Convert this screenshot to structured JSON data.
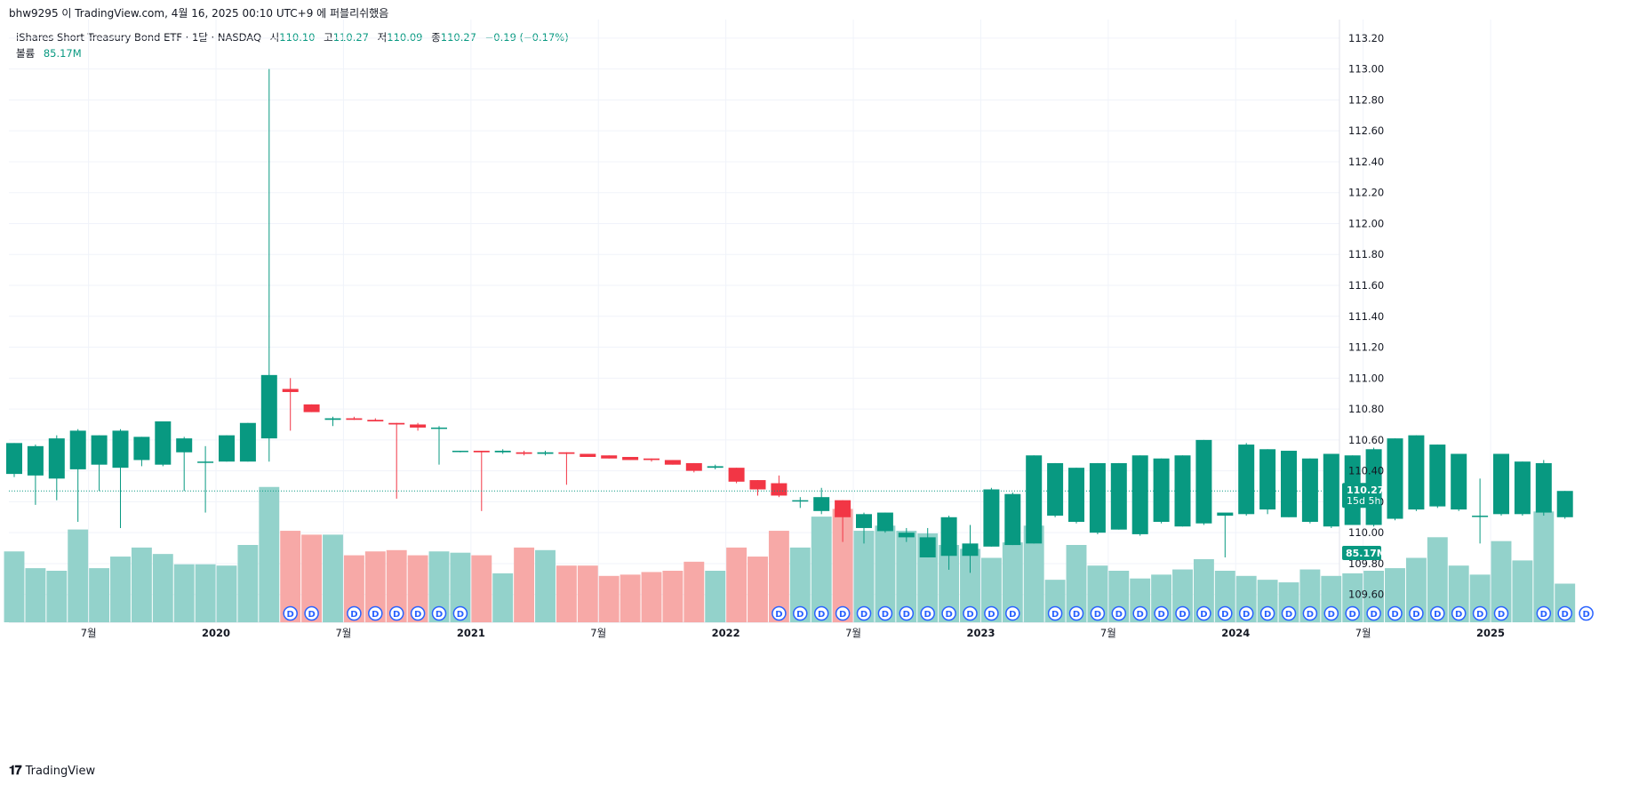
{
  "attribution": "bhw9295 이 TradingView.com, 4월 16, 2025 00:10 UTC+9 에 퍼블리쉬했음",
  "legend": {
    "symbol": "iShares Short Treasury Bond ETF · 1달 · NASDAQ",
    "open_label": "시",
    "open": "110.10",
    "high_label": "고",
    "high": "110.27",
    "low_label": "저",
    "low": "110.09",
    "close_label": "종",
    "close": "110.27",
    "change": "−0.19 (−0.17%)",
    "volume_label": "볼륨",
    "volume": "85.17M"
  },
  "price_tag": {
    "price": "110.27",
    "countdown": "15d 5h"
  },
  "volume_tag": "85.17M",
  "footer_logo": "TradingView",
  "colors": {
    "up": "#089981",
    "down": "#f23645",
    "vol_up": "#93d2cb",
    "vol_down": "#f7a9a7",
    "grid": "#f0f3fa",
    "badge": "#2962ff"
  },
  "icons": {
    "dividend": "dividend-badge-icon",
    "logo": "tradingview-logo-icon"
  },
  "chart_data": {
    "type": "candlestick",
    "interval": "1M",
    "ylim": [
      109.42,
      113.32
    ],
    "yticks": [
      "113.20",
      "113.00",
      "112.80",
      "112.60",
      "112.40",
      "112.20",
      "112.00",
      "111.80",
      "111.60",
      "111.40",
      "111.20",
      "111.00",
      "110.80",
      "110.60",
      "110.40",
      "110.20",
      "110.00",
      "109.80",
      "109.60"
    ],
    "xticks": [
      {
        "label": "7월",
        "year": false,
        "index": 4
      },
      {
        "label": "2020",
        "year": true,
        "index": 10
      },
      {
        "label": "7월",
        "year": false,
        "index": 16
      },
      {
        "label": "2021",
        "year": true,
        "index": 22
      },
      {
        "label": "7월",
        "year": false,
        "index": 28
      },
      {
        "label": "2022",
        "year": true,
        "index": 34
      },
      {
        "label": "7월",
        "year": false,
        "index": 40
      },
      {
        "label": "2023",
        "year": true,
        "index": 46
      },
      {
        "label": "7월",
        "year": false,
        "index": 52
      },
      {
        "label": "2024",
        "year": true,
        "index": 58
      },
      {
        "label": "7월",
        "year": false,
        "index": 64
      },
      {
        "label": "2025",
        "year": true,
        "index": 70
      }
    ],
    "last_price": 110.27,
    "dividend_badge": "D",
    "candles": [
      {
        "o": 110.38,
        "h": 110.58,
        "l": 110.36,
        "c": 110.58,
        "v": 0.55
      },
      {
        "o": 110.37,
        "h": 110.57,
        "l": 110.18,
        "c": 110.56,
        "v": 0.42
      },
      {
        "o": 110.35,
        "h": 110.63,
        "l": 110.21,
        "c": 110.61,
        "v": 0.4
      },
      {
        "o": 110.41,
        "h": 110.67,
        "l": 110.07,
        "c": 110.66,
        "v": 0.72
      },
      {
        "o": 110.44,
        "h": 110.63,
        "l": 110.27,
        "c": 110.63,
        "v": 0.42
      },
      {
        "o": 110.42,
        "h": 110.67,
        "l": 110.03,
        "c": 110.66,
        "v": 0.51
      },
      {
        "o": 110.47,
        "h": 110.62,
        "l": 110.43,
        "c": 110.62,
        "v": 0.58
      },
      {
        "o": 110.44,
        "h": 110.72,
        "l": 110.43,
        "c": 110.72,
        "v": 0.53
      },
      {
        "o": 110.52,
        "h": 110.62,
        "l": 110.27,
        "c": 110.61,
        "v": 0.45
      },
      {
        "o": 110.46,
        "h": 110.56,
        "l": 110.13,
        "c": 110.46,
        "v": 0.45
      },
      {
        "o": 110.46,
        "h": 110.63,
        "l": 110.46,
        "c": 110.63,
        "v": 0.44
      },
      {
        "o": 110.46,
        "h": 110.71,
        "l": 110.46,
        "c": 110.71,
        "v": 0.6
      },
      {
        "o": 110.61,
        "h": 113.0,
        "l": 110.46,
        "c": 111.02,
        "v": 1.05
      },
      {
        "o": 110.93,
        "h": 111.0,
        "l": 110.66,
        "c": 110.91,
        "v": 0.71
      },
      {
        "o": 110.83,
        "h": 110.83,
        "l": 110.78,
        "c": 110.78,
        "v": 0.68
      },
      {
        "o": 110.73,
        "h": 110.75,
        "l": 110.69,
        "c": 110.74,
        "v": 0.68
      },
      {
        "o": 110.74,
        "h": 110.75,
        "l": 110.73,
        "c": 110.73,
        "v": 0.52
      },
      {
        "o": 110.73,
        "h": 110.74,
        "l": 110.72,
        "c": 110.72,
        "v": 0.55
      },
      {
        "o": 110.71,
        "h": 110.71,
        "l": 110.22,
        "c": 110.7,
        "v": 0.56
      },
      {
        "o": 110.7,
        "h": 110.71,
        "l": 110.66,
        "c": 110.68,
        "v": 0.52
      },
      {
        "o": 110.68,
        "h": 110.69,
        "l": 110.44,
        "c": 110.68,
        "v": 0.55
      },
      {
        "o": 110.53,
        "h": 110.53,
        "l": 110.52,
        "c": 110.53,
        "v": 0.54
      },
      {
        "o": 110.53,
        "h": 110.53,
        "l": 110.14,
        "c": 110.52,
        "v": 0.52
      },
      {
        "o": 110.52,
        "h": 110.54,
        "l": 110.51,
        "c": 110.53,
        "v": 0.38
      },
      {
        "o": 110.52,
        "h": 110.53,
        "l": 110.5,
        "c": 110.51,
        "v": 0.58
      },
      {
        "o": 110.51,
        "h": 110.53,
        "l": 110.5,
        "c": 110.52,
        "v": 0.56
      },
      {
        "o": 110.52,
        "h": 110.52,
        "l": 110.31,
        "c": 110.51,
        "v": 0.44
      },
      {
        "o": 110.51,
        "h": 110.51,
        "l": 110.49,
        "c": 110.49,
        "v": 0.44
      },
      {
        "o": 110.5,
        "h": 110.5,
        "l": 110.48,
        "c": 110.48,
        "v": 0.36
      },
      {
        "o": 110.49,
        "h": 110.49,
        "l": 110.47,
        "c": 110.47,
        "v": 0.37
      },
      {
        "o": 110.48,
        "h": 110.48,
        "l": 110.46,
        "c": 110.47,
        "v": 0.39
      },
      {
        "o": 110.47,
        "h": 110.47,
        "l": 110.44,
        "c": 110.44,
        "v": 0.4
      },
      {
        "o": 110.45,
        "h": 110.45,
        "l": 110.39,
        "c": 110.4,
        "v": 0.47
      },
      {
        "o": 110.42,
        "h": 110.44,
        "l": 110.41,
        "c": 110.43,
        "v": 0.4
      },
      {
        "o": 110.42,
        "h": 110.42,
        "l": 110.32,
        "c": 110.33,
        "v": 0.58
      },
      {
        "o": 110.34,
        "h": 110.34,
        "l": 110.24,
        "c": 110.28,
        "v": 0.51
      },
      {
        "o": 110.32,
        "h": 110.37,
        "l": 110.23,
        "c": 110.24,
        "v": 0.71
      },
      {
        "o": 110.21,
        "h": 110.23,
        "l": 110.16,
        "c": 110.21,
        "v": 0.58
      },
      {
        "o": 110.14,
        "h": 110.29,
        "l": 110.12,
        "c": 110.23,
        "v": 0.82
      },
      {
        "o": 110.21,
        "h": 110.21,
        "l": 109.94,
        "c": 110.1,
        "v": 0.88
      },
      {
        "o": 110.03,
        "h": 110.13,
        "l": 109.93,
        "c": 110.12,
        "v": 0.71
      },
      {
        "o": 110.01,
        "h": 110.13,
        "l": 110.0,
        "c": 110.13,
        "v": 0.75
      },
      {
        "o": 109.97,
        "h": 110.03,
        "l": 109.94,
        "c": 110.0,
        "v": 0.71
      },
      {
        "o": 109.84,
        "h": 110.03,
        "l": 109.84,
        "c": 109.97,
        "v": 0.69
      },
      {
        "o": 109.85,
        "h": 110.11,
        "l": 109.76,
        "c": 110.1,
        "v": 0.6
      },
      {
        "o": 109.85,
        "h": 110.05,
        "l": 109.74,
        "c": 109.93,
        "v": 0.57
      },
      {
        "o": 109.91,
        "h": 110.29,
        "l": 109.91,
        "c": 110.28,
        "v": 0.5
      },
      {
        "o": 109.92,
        "h": 110.26,
        "l": 109.92,
        "c": 110.25,
        "v": 0.62
      },
      {
        "o": 109.93,
        "h": 110.5,
        "l": 109.93,
        "c": 110.5,
        "v": 0.75
      },
      {
        "o": 110.11,
        "h": 110.45,
        "l": 110.1,
        "c": 110.45,
        "v": 0.33
      },
      {
        "o": 110.07,
        "h": 110.42,
        "l": 110.06,
        "c": 110.42,
        "v": 0.6
      },
      {
        "o": 110.0,
        "h": 110.45,
        "l": 109.99,
        "c": 110.45,
        "v": 0.44
      },
      {
        "o": 110.02,
        "h": 110.45,
        "l": 110.02,
        "c": 110.45,
        "v": 0.4
      },
      {
        "o": 109.99,
        "h": 110.5,
        "l": 109.98,
        "c": 110.5,
        "v": 0.34
      },
      {
        "o": 110.07,
        "h": 110.48,
        "l": 110.06,
        "c": 110.48,
        "v": 0.37
      },
      {
        "o": 110.04,
        "h": 110.5,
        "l": 110.04,
        "c": 110.5,
        "v": 0.41
      },
      {
        "o": 110.06,
        "h": 110.6,
        "l": 110.05,
        "c": 110.6,
        "v": 0.49
      },
      {
        "o": 110.11,
        "h": 110.12,
        "l": 109.84,
        "c": 110.13,
        "v": 0.4
      },
      {
        "o": 110.12,
        "h": 110.58,
        "l": 110.11,
        "c": 110.57,
        "v": 0.36
      },
      {
        "o": 110.15,
        "h": 110.54,
        "l": 110.12,
        "c": 110.54,
        "v": 0.33
      },
      {
        "o": 110.1,
        "h": 110.53,
        "l": 110.1,
        "c": 110.53,
        "v": 0.31
      },
      {
        "o": 110.07,
        "h": 110.48,
        "l": 110.06,
        "c": 110.48,
        "v": 0.41
      },
      {
        "o": 110.04,
        "h": 110.51,
        "l": 110.03,
        "c": 110.51,
        "v": 0.36
      },
      {
        "o": 110.05,
        "h": 110.5,
        "l": 110.05,
        "c": 110.5,
        "v": 0.38
      },
      {
        "o": 110.05,
        "h": 110.55,
        "l": 110.04,
        "c": 110.54,
        "v": 0.4
      },
      {
        "o": 110.09,
        "h": 110.61,
        "l": 110.08,
        "c": 110.61,
        "v": 0.42
      },
      {
        "o": 110.15,
        "h": 110.63,
        "l": 110.14,
        "c": 110.63,
        "v": 0.5
      },
      {
        "o": 110.17,
        "h": 110.57,
        "l": 110.16,
        "c": 110.57,
        "v": 0.66
      },
      {
        "o": 110.15,
        "h": 110.51,
        "l": 110.14,
        "c": 110.51,
        "v": 0.44
      },
      {
        "o": 110.11,
        "h": 110.35,
        "l": 109.93,
        "c": 110.11,
        "v": 0.37
      },
      {
        "o": 110.12,
        "h": 110.51,
        "l": 110.11,
        "c": 110.51,
        "v": 0.63
      },
      {
        "o": 110.12,
        "h": 110.46,
        "l": 110.11,
        "c": 110.46,
        "v": 0.48
      },
      {
        "o": 110.13,
        "h": 110.47,
        "l": 110.11,
        "c": 110.45,
        "v": 0.86
      },
      {
        "o": 110.1,
        "h": 110.27,
        "l": 110.09,
        "c": 110.27,
        "v": 0.3
      }
    ],
    "dividend_indices": [
      13,
      14,
      16,
      17,
      18,
      19,
      20,
      21,
      36,
      37,
      38,
      39,
      40,
      41,
      42,
      43,
      44,
      45,
      46,
      47,
      49,
      50,
      51,
      52,
      53,
      54,
      55,
      56,
      57,
      58,
      59,
      60,
      61,
      62,
      63,
      64,
      65,
      66,
      67,
      68,
      69,
      70,
      72,
      73,
      74
    ]
  }
}
